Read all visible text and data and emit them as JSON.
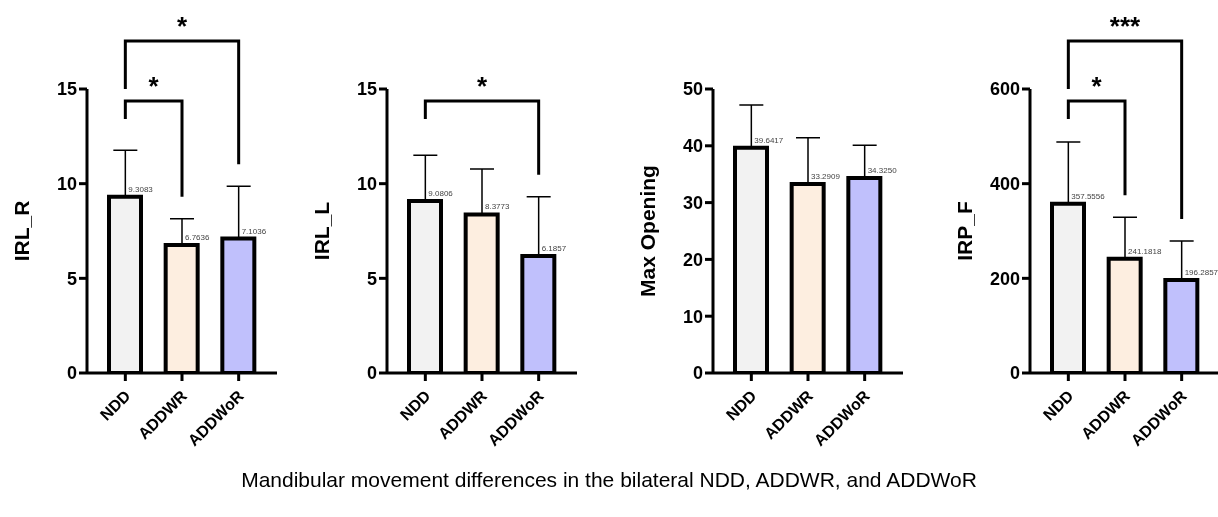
{
  "chart_data": [
    {
      "type": "bar",
      "ylabel": "IRL_R",
      "categories": [
        "NDD",
        "ADDWR",
        "ADDWoR"
      ],
      "values": [
        9.3083,
        6.7636,
        7.1036
      ],
      "colors": [
        "#f2f2f2",
        "#fdeee0",
        "#c0c0fc"
      ],
      "errors": [
        [
          9.3083,
          11.76
        ],
        [
          6.7636,
          8.15
        ],
        [
          7.1036,
          9.86
        ]
      ],
      "value_labels": [
        "9.3083",
        "6.7636",
        "7.1036"
      ],
      "ylim": [
        0,
        15
      ],
      "yticks": [
        0,
        5,
        10,
        15
      ],
      "annotations": [
        "*",
        "*"
      ]
    },
    {
      "type": "bar",
      "ylabel": "IRL_L",
      "categories": [
        "NDD",
        "ADDWR",
        "ADDWoR"
      ],
      "values": [
        9.0806,
        8.3773,
        6.1857
      ],
      "colors": [
        "#f2f2f2",
        "#fdeee0",
        "#c0c0fc"
      ],
      "errors": [
        [
          9.0806,
          11.5
        ],
        [
          8.3773,
          10.78
        ],
        [
          6.1857,
          9.31
        ]
      ],
      "value_labels": [
        "9.0806",
        "8.3773",
        "6.1857"
      ],
      "ylim": [
        0,
        15
      ],
      "yticks": [
        0,
        5,
        10,
        15
      ],
      "annotations": [
        "*"
      ]
    },
    {
      "type": "bar",
      "ylabel": "Max Opening",
      "categories": [
        "NDD",
        "ADDWR",
        "ADDWoR"
      ],
      "values": [
        39.6417,
        33.2909,
        34.325
      ],
      "colors": [
        "#f2f2f2",
        "#fdeee0",
        "#c0c0fc"
      ],
      "errors": [
        [
          39.6417,
          47.2
        ],
        [
          33.2909,
          41.4
        ],
        [
          34.325,
          40.1
        ]
      ],
      "value_labels": [
        "39.6417",
        "33.2909",
        "34.3250"
      ],
      "ylim": [
        0,
        50
      ],
      "yticks": [
        0,
        10,
        20,
        30,
        40,
        50
      ]
    },
    {
      "type": "bar",
      "ylabel": "IRP_F",
      "categories": [
        "NDD",
        "ADDWR",
        "ADDWoR"
      ],
      "values": [
        357.5556,
        241.1818,
        196.2857
      ],
      "colors": [
        "#f2f2f2",
        "#fdeee0",
        "#c0c0fc"
      ],
      "errors": [
        [
          357.5556,
          488
        ],
        [
          241.1818,
          329
        ],
        [
          196.2857,
          279
        ]
      ],
      "value_labels": [
        "357.5556",
        "241.1818",
        "196.2857"
      ],
      "ylim": [
        0,
        600
      ],
      "yticks": [
        0,
        200,
        400,
        600
      ],
      "annotations": [
        "*",
        "***"
      ]
    },
    {
      "type": "other",
      "annotations": [
        "Mandibular movement differences in the bilateral NDD, ADDWR, and ADDWoR"
      ]
    }
  ]
}
